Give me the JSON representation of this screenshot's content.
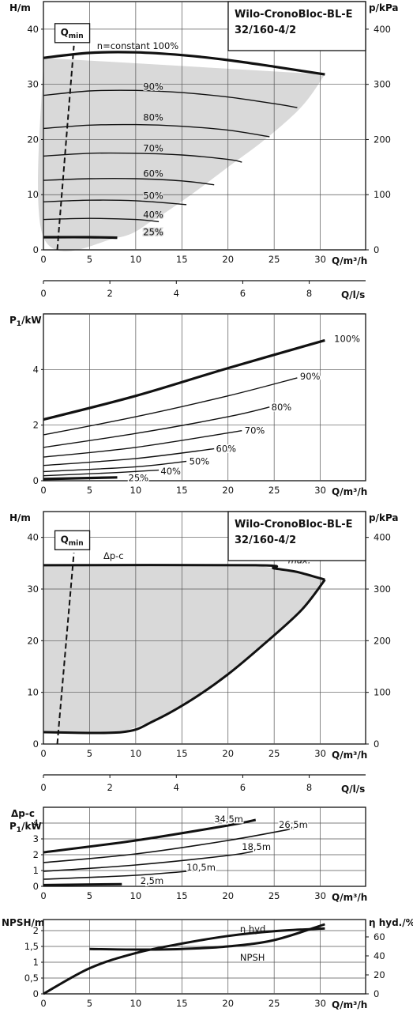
{
  "header": {
    "title_line1": "Wilo-CronoBloc-BL-E",
    "title_line2": "32/160-4/2"
  },
  "colors": {
    "line": "#111111",
    "grid": "#555555",
    "fill": "#d9d9d9",
    "background": "#ffffff"
  },
  "charts": [
    {
      "id": "head_flow",
      "type": "line",
      "y_label": "H/m",
      "y2_label": "p/kPa",
      "x_label": "Q/m³/h",
      "qmin_label": "Q",
      "qmin_sub": "min",
      "x_ticks": [
        0,
        5,
        10,
        15,
        20,
        25,
        30
      ],
      "y_ticks": [
        0,
        10,
        20,
        30,
        40
      ],
      "y2_ticks": [
        0,
        100,
        200,
        300,
        400
      ],
      "xlim": [
        0,
        35
      ],
      "ylim": [
        0,
        45
      ],
      "series": [
        {
          "name": "n=constant 100%",
          "x": [
            0,
            5,
            10,
            15,
            20,
            25,
            30.5
          ],
          "y": [
            34.8,
            35.7,
            35.8,
            35.3,
            34.4,
            33.2,
            31.8
          ]
        },
        {
          "name": "90%",
          "x": [
            0,
            5,
            10,
            15,
            20,
            25,
            27.5
          ],
          "y": [
            28,
            28.8,
            28.9,
            28.5,
            27.7,
            26.5,
            25.8
          ]
        },
        {
          "name": "80%",
          "x": [
            0,
            5,
            10,
            15,
            20,
            24.5
          ],
          "y": [
            22,
            22.6,
            22.7,
            22.4,
            21.7,
            20.5
          ]
        },
        {
          "name": "70%",
          "x": [
            0,
            5,
            10,
            15,
            20,
            21.5
          ],
          "y": [
            17,
            17.5,
            17.5,
            17.2,
            16.4,
            15.9
          ]
        },
        {
          "name": "60%",
          "x": [
            0,
            5,
            10,
            15,
            18.5
          ],
          "y": [
            12.6,
            12.9,
            12.9,
            12.5,
            11.8
          ]
        },
        {
          "name": "50%",
          "x": [
            0,
            5,
            10,
            15.5
          ],
          "y": [
            8.7,
            9,
            8.9,
            8.2
          ]
        },
        {
          "name": "40%",
          "x": [
            0,
            5,
            10,
            12.5
          ],
          "y": [
            5.5,
            5.7,
            5.5,
            5.1
          ]
        },
        {
          "name": "25%",
          "x": [
            0,
            5,
            8
          ],
          "y": [
            2.3,
            2.3,
            2.2
          ]
        }
      ],
      "envelope": {
        "x": [
          0,
          0,
          8,
          12,
          16,
          20,
          24,
          28,
          30.5
        ],
        "y": [
          34.8,
          2.3,
          2.2,
          5.5,
          10,
          15,
          20,
          26,
          31.8
        ]
      },
      "qmin_line": {
        "x": [
          1.5,
          3.3
        ],
        "y": [
          0,
          37
        ]
      }
    },
    {
      "id": "flow_ls_axis_1",
      "type": "axis",
      "x_label": "Q/l/s",
      "x_ticks": [
        0,
        2,
        4,
        6,
        8
      ]
    },
    {
      "id": "power_flow",
      "type": "line",
      "y_label": "P",
      "y_label_sub": "1",
      "y_label_unit": "/kW",
      "x_label": "Q/m³/h",
      "x_ticks": [
        0,
        5,
        10,
        15,
        20,
        25,
        30
      ],
      "y_ticks": [
        0,
        2,
        4
      ],
      "xlim": [
        0,
        35
      ],
      "ylim": [
        0,
        6
      ],
      "series": [
        {
          "name": "100%",
          "x": [
            0,
            10,
            20,
            30.5
          ],
          "y": [
            2.2,
            3.05,
            4.05,
            5.05
          ]
        },
        {
          "name": "90%",
          "x": [
            0,
            10,
            20,
            27.5
          ],
          "y": [
            1.65,
            2.3,
            3.05,
            3.7
          ]
        },
        {
          "name": "80%",
          "x": [
            0,
            10,
            20,
            24.5
          ],
          "y": [
            1.2,
            1.7,
            2.3,
            2.65
          ]
        },
        {
          "name": "70%",
          "x": [
            0,
            10,
            21.5
          ],
          "y": [
            0.85,
            1.2,
            1.8
          ]
        },
        {
          "name": "60%",
          "x": [
            0,
            10,
            18.5
          ],
          "y": [
            0.55,
            0.8,
            1.15
          ]
        },
        {
          "name": "50%",
          "x": [
            0,
            10,
            15.5
          ],
          "y": [
            0.33,
            0.5,
            0.7
          ]
        },
        {
          "name": "40%",
          "x": [
            0,
            7,
            12.5
          ],
          "y": [
            0.18,
            0.28,
            0.38
          ]
        },
        {
          "name": "25%",
          "x": [
            0,
            8
          ],
          "y": [
            0.06,
            0.12
          ]
        }
      ]
    },
    {
      "id": "head_flow_dpc",
      "type": "line",
      "y_label": "H/m",
      "y2_label": "p/kPa",
      "x_label": "Q/m³/h",
      "qmin_label": "Q",
      "qmin_sub": "min",
      "mode_label": "Δp-c",
      "max_label": "max.",
      "x_ticks": [
        0,
        5,
        10,
        15,
        20,
        25,
        30
      ],
      "y_ticks": [
        0,
        10,
        20,
        30,
        40
      ],
      "y2_ticks": [
        0,
        100,
        200,
        300,
        400
      ],
      "xlim": [
        0,
        35
      ],
      "ylim": [
        0,
        45
      ],
      "series": [
        {
          "name": "Δp-c",
          "x": [
            0,
            23,
            25,
            27.5,
            30.5
          ],
          "y": [
            34.6,
            34.6,
            34,
            33.3,
            31.8
          ]
        },
        {
          "name": "min",
          "x": [
            0,
            8.5,
            12,
            16,
            20,
            24,
            28,
            30.5
          ],
          "y": [
            2.3,
            2.3,
            4.5,
            8.5,
            13.5,
            19.5,
            26,
            31.8
          ]
        }
      ],
      "envelope": {
        "x": [
          0,
          23,
          25,
          27.5,
          30.5,
          28,
          24,
          20,
          16,
          12,
          8.5,
          0
        ],
        "y": [
          34.6,
          34.6,
          34,
          33.3,
          31.8,
          26,
          19.5,
          13.5,
          8.5,
          4.5,
          2.3,
          2.3
        ]
      },
      "qmin_line": {
        "x": [
          1.5,
          3.3
        ],
        "y": [
          0,
          37
        ]
      }
    },
    {
      "id": "flow_ls_axis_2",
      "type": "axis",
      "x_label": "Q/l/s",
      "x_ticks": [
        0,
        2,
        4,
        6,
        8
      ]
    },
    {
      "id": "power_flow_dpc",
      "type": "line",
      "y_label_top": "Δp-c",
      "y_label": "P",
      "y_label_sub": "1",
      "y_label_unit": "/kW",
      "x_label": "Q/m³/h",
      "x_ticks": [
        0,
        5,
        10,
        15,
        20,
        25,
        30
      ],
      "y_ticks": [
        0,
        1,
        2,
        3,
        4
      ],
      "xlim": [
        0,
        35
      ],
      "ylim": [
        0,
        5
      ],
      "series": [
        {
          "name": "34,5m",
          "x": [
            0,
            10,
            20,
            23
          ],
          "y": [
            2.15,
            2.9,
            3.85,
            4.2
          ]
        },
        {
          "name": "26,5m",
          "x": [
            0,
            10,
            20,
            27.5
          ],
          "y": [
            1.5,
            2.05,
            2.9,
            3.7
          ]
        },
        {
          "name": "18,5m",
          "x": [
            0,
            10,
            20,
            23
          ],
          "y": [
            0.95,
            1.35,
            1.95,
            2.25
          ]
        },
        {
          "name": "10,5m",
          "x": [
            0,
            10,
            17.5
          ],
          "y": [
            0.45,
            0.7,
            1.05
          ]
        },
        {
          "name": "2,5m",
          "x": [
            0,
            8.5
          ],
          "y": [
            0.08,
            0.14
          ]
        }
      ]
    },
    {
      "id": "npsh_eff",
      "type": "line",
      "y_label": "NPSH/m",
      "y2_label": "η hyd./%",
      "x_label": "Q/m³/h",
      "x_ticks": [
        0,
        5,
        10,
        15,
        20,
        25,
        30
      ],
      "y_ticks": [
        "0",
        "0,5",
        "1",
        "1,5",
        "2"
      ],
      "y_tick_values": [
        0,
        0.5,
        1,
        1.5,
        2
      ],
      "y2_ticks": [
        0,
        20,
        40,
        60
      ],
      "xlim": [
        0,
        35
      ],
      "ylim": [
        0,
        2.35
      ],
      "y2lim": [
        0,
        78.3
      ],
      "series": [
        {
          "name": "NPSH",
          "axis": "left",
          "x": [
            5,
            10,
            15,
            20,
            25,
            30.5
          ],
          "y": [
            1.42,
            1.4,
            1.42,
            1.5,
            1.7,
            2.2
          ]
        },
        {
          "name": "η hyd.",
          "axis": "right",
          "x": [
            0,
            5,
            10,
            15,
            20,
            25,
            30.5
          ],
          "y": [
            0,
            27,
            43,
            53,
            61,
            66,
            69
          ]
        }
      ]
    }
  ]
}
